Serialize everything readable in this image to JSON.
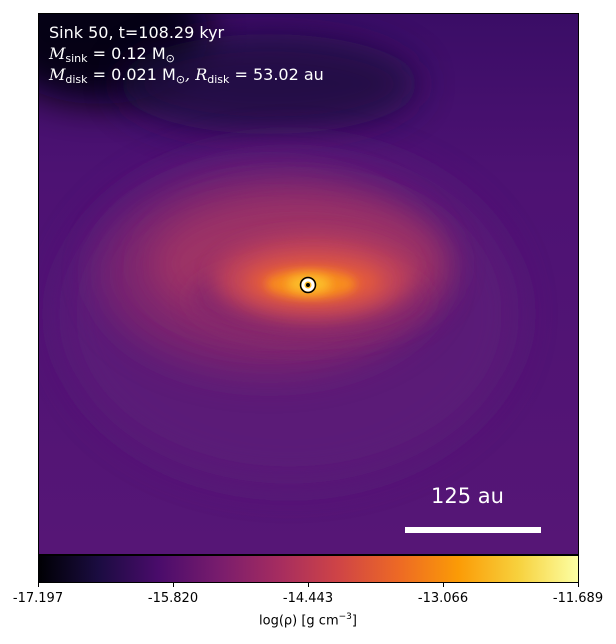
{
  "info": {
    "line1": "Sink 50, t=108.29 kyr",
    "msink_symbol": "M",
    "msink_sub": "sink",
    "msink_value": " = 0.12 M",
    "msink_unit_sub": "⊙",
    "mdisk_symbol": "M",
    "mdisk_sub": "disk",
    "mdisk_value": " = 0.021 M",
    "mdisk_unit_sub": "⊙",
    "rdisk_symbol": ", R",
    "rdisk_sub": "disk",
    "rdisk_value": " = 53.02 au"
  },
  "scale_bar": {
    "label": "125 au"
  },
  "colorbar": {
    "ticks": [
      "-17.197",
      "-15.820",
      "-14.443",
      "-13.066",
      "-11.689"
    ],
    "label_prefix": "log(ρ) [g cm",
    "label_sup": "−3",
    "label_suffix": "]",
    "colormap": "inferno"
  },
  "colors": {
    "background": "#4a1270",
    "dark_top": "#0a0515",
    "disk_bright": "#fcb51e",
    "sink_marker": "#ffffff"
  }
}
